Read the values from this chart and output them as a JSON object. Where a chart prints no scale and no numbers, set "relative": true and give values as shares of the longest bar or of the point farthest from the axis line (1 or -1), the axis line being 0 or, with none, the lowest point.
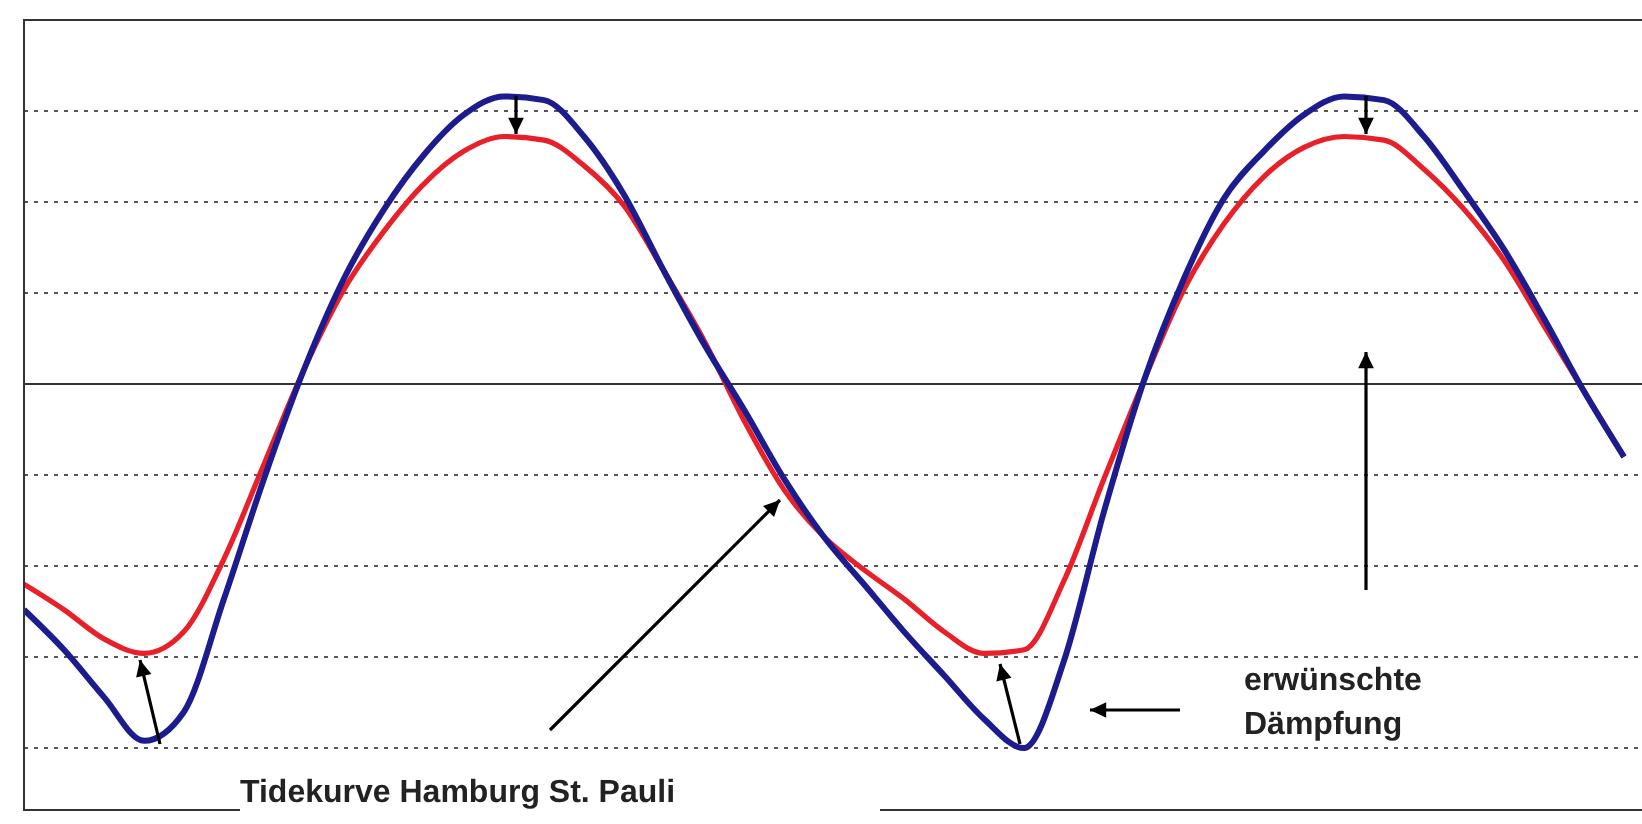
{
  "chart_data": {
    "type": "line",
    "relative": true,
    "grid": "y",
    "legend": false,
    "marker": "none",
    "line_style": "solid",
    "categories": [
      null,
      null,
      null,
      null,
      null,
      null,
      null,
      null,
      null,
      null,
      null,
      null,
      null,
      null,
      null,
      null,
      null,
      null,
      null,
      null,
      null,
      null,
      null,
      null,
      null,
      null,
      null,
      null,
      null,
      null,
      null,
      null,
      null,
      null,
      null,
      null,
      null,
      null,
      null,
      null,
      null
    ],
    "series": [
      {
        "color": "#e8202a",
        "values": [
          -0.55,
          -0.62,
          -0.7,
          -0.74,
          -0.68,
          -0.48,
          -0.22,
          0.04,
          0.26,
          0.42,
          0.55,
          0.64,
          0.68,
          0.67,
          0.6,
          0.49,
          0.31,
          0.12,
          -0.1,
          -0.29,
          -0.42,
          -0.51,
          -0.59,
          -0.68,
          -0.74,
          -0.73,
          -0.54,
          -0.26,
          0.01,
          0.26,
          0.44,
          0.57,
          0.65,
          0.68,
          0.67,
          0.59,
          0.48,
          0.34,
          0.16,
          -0.02,
          -0.2
        ]
      },
      {
        "color": "#1c1c8e",
        "values": [
          -0.62,
          -0.73,
          -0.86,
          -0.98,
          -0.9,
          -0.59,
          -0.26,
          0.04,
          0.29,
          0.48,
          0.63,
          0.74,
          0.79,
          0.78,
          0.68,
          0.52,
          0.31,
          0.11,
          -0.07,
          -0.26,
          -0.42,
          -0.55,
          -0.68,
          -0.8,
          -0.92,
          -1,
          -0.76,
          -0.35,
          0.01,
          0.29,
          0.51,
          0.64,
          0.74,
          0.79,
          0.78,
          0.68,
          0.53,
          0.37,
          0.18,
          -0.02,
          -0.2
        ]
      }
    ],
    "annotations": [
      "Tidekurve Hamburg St. Pauli",
      "erwünschte Dämpfung"
    ]
  }
}
